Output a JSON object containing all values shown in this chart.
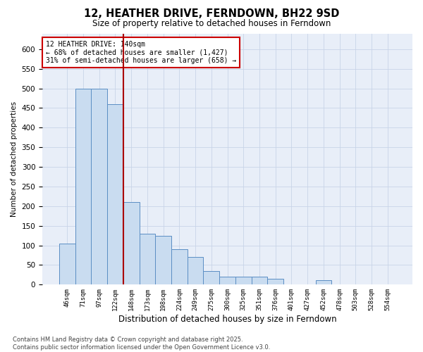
{
  "title": "12, HEATHER DRIVE, FERNDOWN, BH22 9SD",
  "subtitle": "Size of property relative to detached houses in Ferndown",
  "xlabel": "Distribution of detached houses by size in Ferndown",
  "ylabel": "Number of detached properties",
  "footer": "Contains HM Land Registry data © Crown copyright and database right 2025.\nContains public sector information licensed under the Open Government Licence v3.0.",
  "categories": [
    "46sqm",
    "71sqm",
    "97sqm",
    "122sqm",
    "148sqm",
    "173sqm",
    "198sqm",
    "224sqm",
    "249sqm",
    "275sqm",
    "300sqm",
    "325sqm",
    "351sqm",
    "376sqm",
    "401sqm",
    "427sqm",
    "452sqm",
    "478sqm",
    "503sqm",
    "528sqm",
    "554sqm"
  ],
  "values": [
    105,
    500,
    500,
    460,
    210,
    130,
    125,
    90,
    70,
    35,
    20,
    20,
    20,
    15,
    0,
    0,
    12,
    0,
    0,
    0,
    0
  ],
  "bar_color": "#c9dcf0",
  "bar_edge_color": "#5b8ec4",
  "grid_color": "#c8d4e8",
  "bg_color": "#e8eef8",
  "vline_color": "#aa0000",
  "annotation_text": "12 HEATHER DRIVE: 140sqm\n← 68% of detached houses are smaller (1,427)\n31% of semi-detached houses are larger (658) →",
  "annotation_box_color": "#cc0000",
  "ylim": [
    0,
    640
  ],
  "yticks": [
    0,
    50,
    100,
    150,
    200,
    250,
    300,
    350,
    400,
    450,
    500,
    550,
    600
  ]
}
